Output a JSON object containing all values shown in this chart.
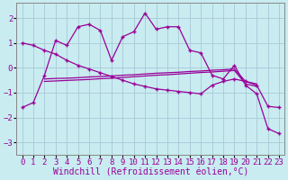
{
  "background_color": "#c8ecf0",
  "grid_color": "#aac8d8",
  "line_color": "#990099",
  "xlabel": "Windchill (Refroidissement éolien,°C)",
  "xlim": [
    -0.5,
    23.5
  ],
  "ylim": [
    -3.5,
    2.6
  ],
  "yticks": [
    -3,
    -2,
    -1,
    0,
    1,
    2
  ],
  "xticks": [
    0,
    1,
    2,
    3,
    4,
    5,
    6,
    7,
    8,
    9,
    10,
    11,
    12,
    13,
    14,
    15,
    16,
    17,
    18,
    19,
    20,
    21,
    22,
    23
  ],
  "series1_x": [
    0,
    1,
    2,
    3,
    4,
    5,
    6,
    7,
    8,
    9,
    10,
    11,
    12,
    13,
    14,
    15,
    16,
    17,
    18,
    19,
    20,
    21,
    22,
    23
  ],
  "series1_y": [
    -1.6,
    -1.4,
    -0.3,
    1.1,
    0.9,
    1.65,
    1.75,
    1.5,
    0.3,
    1.25,
    1.45,
    2.2,
    1.55,
    1.65,
    1.65,
    0.7,
    0.6,
    -0.3,
    -0.45,
    0.1,
    -0.7,
    -1.05,
    -2.45,
    -2.65
  ],
  "series2_x": [
    0,
    1,
    2,
    3,
    4,
    5,
    6,
    7,
    8,
    9,
    10,
    11,
    12,
    13,
    14,
    15,
    16,
    17,
    18,
    19,
    20,
    21,
    22,
    23
  ],
  "series2_y": [
    1.0,
    0.9,
    0.7,
    0.55,
    0.3,
    0.1,
    -0.05,
    -0.2,
    -0.35,
    -0.5,
    -0.65,
    -0.75,
    -0.85,
    -0.9,
    -0.95,
    -1.0,
    -1.05,
    -0.7,
    -0.55,
    -0.45,
    -0.55,
    -0.7,
    -1.55,
    -1.6
  ],
  "series3_x": [
    2,
    3,
    4,
    5,
    6,
    7,
    8,
    9,
    10,
    11,
    12,
    13,
    14,
    15,
    16,
    17,
    18,
    19,
    20,
    21
  ],
  "series3_y": [
    -0.45,
    -0.43,
    -0.42,
    -0.4,
    -0.37,
    -0.35,
    -0.33,
    -0.3,
    -0.28,
    -0.25,
    -0.22,
    -0.2,
    -0.18,
    -0.15,
    -0.13,
    -0.1,
    -0.08,
    -0.05,
    -0.55,
    -0.65
  ],
  "series4_x": [
    2,
    3,
    4,
    5,
    6,
    7,
    8,
    9,
    10,
    11,
    12,
    13,
    14,
    15,
    16,
    17,
    18,
    19,
    20,
    21
  ],
  "series4_y": [
    -0.55,
    -0.53,
    -0.51,
    -0.49,
    -0.47,
    -0.44,
    -0.42,
    -0.39,
    -0.36,
    -0.33,
    -0.3,
    -0.28,
    -0.25,
    -0.22,
    -0.19,
    -0.17,
    -0.14,
    -0.11,
    -0.65,
    -0.75
  ],
  "font_family": "monospace",
  "xlabel_fontsize": 7,
  "tick_fontsize": 6.5
}
